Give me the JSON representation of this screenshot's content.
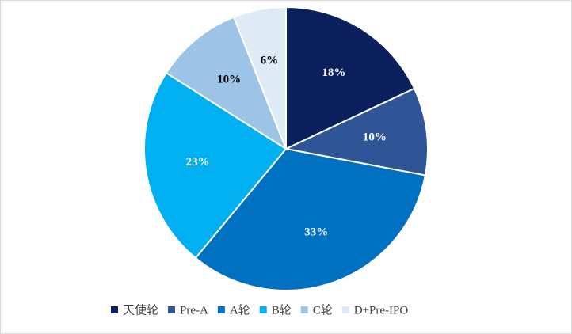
{
  "chart_data": {
    "type": "pie",
    "categories": [
      "天使轮",
      "Pre-A",
      "A轮",
      "B轮",
      "C轮",
      "D+Pre-IPO"
    ],
    "values": [
      18,
      10,
      33,
      23,
      10,
      6
    ],
    "value_labels": [
      "18%",
      "10%",
      "33%",
      "23%",
      "10%",
      "6%"
    ],
    "colors": [
      "#0b1f5c",
      "#2f5597",
      "#0070c0",
      "#00b0f0",
      "#9dc3e6",
      "#deebf7"
    ],
    "legend": "bottom"
  }
}
